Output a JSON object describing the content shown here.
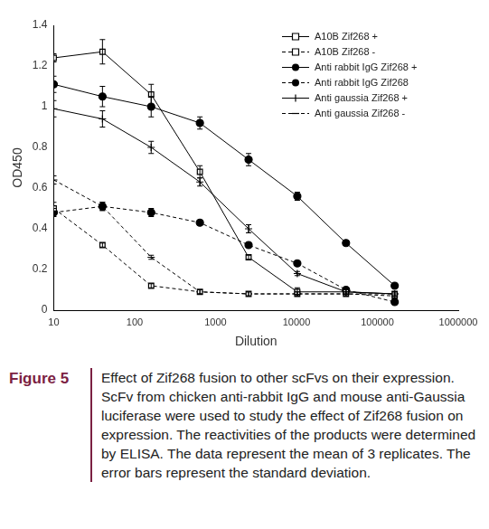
{
  "chart_data": {
    "type": "line",
    "x_label": "Dilution",
    "y_label": "OD450",
    "x": [
      10,
      40,
      160,
      640,
      2560,
      10240,
      40960,
      163840
    ],
    "series": [
      {
        "name": "A10B Zif268 +",
        "color": "#000000",
        "marker": "square_open",
        "line_style": "solid",
        "values": [
          1.24,
          1.27,
          1.06,
          0.68,
          0.26,
          0.09,
          0.09,
          0.08
        ],
        "errors": [
          0.02,
          0.06,
          0.05,
          0.03,
          0.01,
          0.02,
          0.01,
          0.01
        ]
      },
      {
        "name": "A10B Zif268 -",
        "color": "#000000",
        "marker": "square_open",
        "line_style": "dashed",
        "values": [
          0.5,
          0.32,
          0.12,
          0.09,
          0.08,
          0.08,
          0.08,
          0.07
        ],
        "errors": [
          0.03,
          0.01,
          0.01,
          0.01,
          0.01,
          0.01,
          0.01,
          0.01
        ]
      },
      {
        "name": "Anti rabbit IgG Zif268 +",
        "color": "#000000",
        "marker": "circle",
        "line_style": "solid",
        "values": [
          1.11,
          1.05,
          1.0,
          0.92,
          0.74,
          0.56,
          0.33,
          0.12
        ],
        "errors": [
          0.04,
          0.05,
          0.05,
          0.03,
          0.03,
          0.02,
          0.01,
          0.01
        ]
      },
      {
        "name": "Anti rabbit IgG Zif268",
        "color": "#000000",
        "marker": "circle",
        "line_style": "dashed",
        "values": [
          0.48,
          0.51,
          0.48,
          0.43,
          0.32,
          0.23,
          0.1,
          0.04
        ],
        "errors": [
          0.02,
          0.02,
          0.02,
          0.01,
          0.01,
          0.01,
          0.01,
          0.01
        ]
      },
      {
        "name": "Anti gaussia Zif268 +",
        "color": "#000000",
        "marker": "plus",
        "line_style": "solid",
        "values": [
          0.99,
          0.94,
          0.8,
          0.63,
          0.4,
          0.18,
          0.09,
          0.08
        ],
        "errors": [
          0.04,
          0.04,
          0.03,
          0.02,
          0.02,
          0.01,
          0.01,
          0.01
        ]
      },
      {
        "name": "Anti gaussia Zif268 -",
        "color": "#000000",
        "marker": "dash",
        "line_style": "dashed",
        "values": [
          0.64,
          0.51,
          0.26,
          0.09,
          0.08,
          0.08,
          0.08,
          0.08
        ],
        "errors": [
          0.02,
          0.02,
          0.01,
          0.01,
          0.01,
          0.01,
          0.01,
          0.01
        ]
      }
    ],
    "xlim": [
      10,
      1000000
    ],
    "xticks": [
      10,
      100,
      1000,
      10000,
      100000,
      1000000
    ],
    "ylim": [
      0,
      1.4
    ],
    "yticks": [
      0,
      0.2,
      0.4,
      0.6,
      0.8,
      1,
      1.2,
      1.4
    ],
    "log": "x",
    "grid": false,
    "legend": "top-right"
  },
  "figure": {
    "label": "Figure 5",
    "caption": "Effect of Zif268 fusion to other scFvs on their expression. ScFv from chicken anti-rabbit IgG and mouse anti-Gaussia luciferase were used to study the effect of Zif268 fusion on expression. The reactivities of the products were determined by ELISA. The data represent the mean of 3 replicates. The error bars represent the standard deviation."
  }
}
